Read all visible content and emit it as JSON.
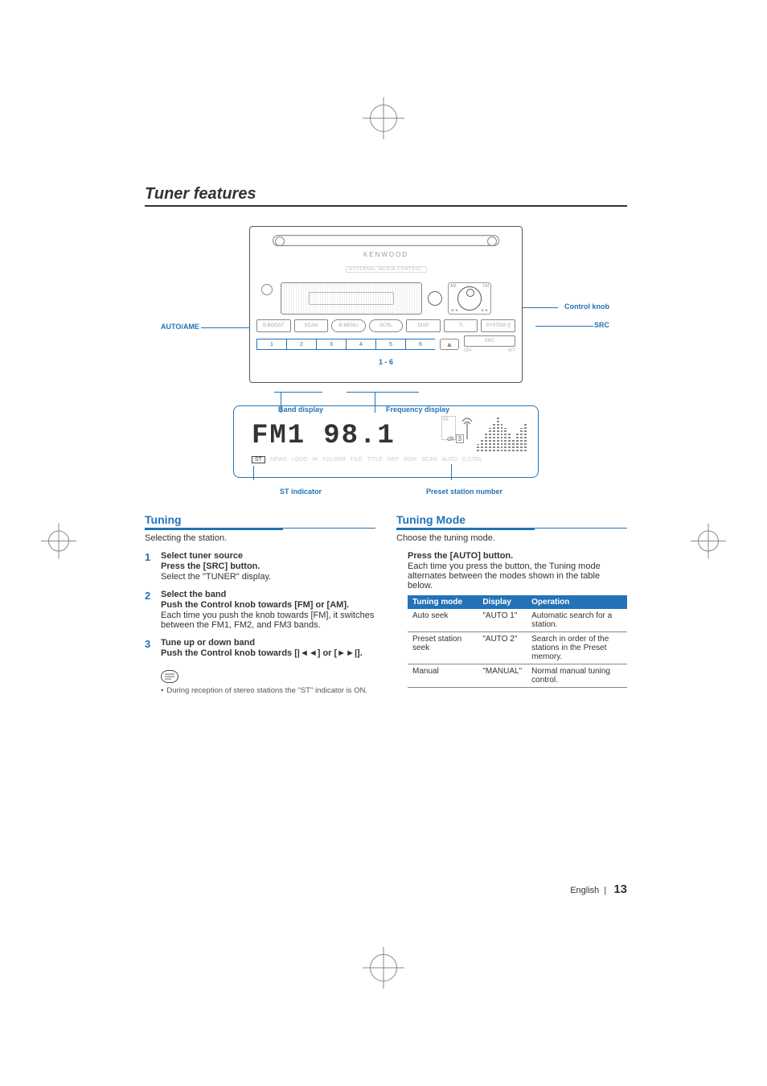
{
  "accent_color": "#2373b8",
  "section_title": "Tuner features",
  "device": {
    "brand": "KENWOOD",
    "sub_brand": "EXTERNAL MEDIA CONTROL",
    "callouts": {
      "auto_ame": "AUTO/AME",
      "control_knob": "Control knob",
      "src": "SRC"
    },
    "btn_row_labels": [
      "B.BOOST",
      "SCAN",
      "B MENU",
      "SCRL",
      "DISP",
      "TI",
      "SYSTEM Q"
    ],
    "btn_row_kind": [
      false,
      false,
      true,
      true,
      false,
      false,
      false
    ],
    "btn_sub_labels": [
      "B.BOOST",
      "SCAN",
      "SCRL",
      "DISP",
      "SYSTEM Q"
    ],
    "right_block": {
      "src": "SRC",
      "off": "OFF",
      "att": "ATT"
    },
    "knob_corners": {
      "tl": "AM",
      "tr": "FM",
      "bl": "◄◄",
      "br": "►►"
    },
    "preset_buttons": [
      "1",
      "2",
      "3",
      "4",
      "5",
      "6"
    ],
    "preset_caption": "1 - 6",
    "eject_glyph": "▲"
  },
  "lcd": {
    "labels": {
      "band_display": "Band display",
      "frequency_display": "Frequency display",
      "st_indicator": "ST indicator",
      "preset_station_number": "Preset station number"
    },
    "band_text": "FM1",
    "freq_text": "98.1",
    "icons_row": [
      "ST",
      "NEWS",
      "LOUD",
      "IN",
      "FOLDER",
      "FILE",
      "TITLE",
      "REP",
      "RDM",
      "SCAN",
      "AUTO",
      "D.CTRL"
    ],
    "eq_bar_heights_pct": [
      20,
      35,
      50,
      65,
      80,
      95,
      80,
      65,
      50,
      35,
      50,
      65,
      80
    ],
    "ch_label": "ch",
    "ch_value": "3"
  },
  "left_col": {
    "heading": "Tuning",
    "intro": "Selecting the station.",
    "steps": [
      {
        "num": "1",
        "title": "Select tuner source",
        "strong": "Press the [SRC] button.",
        "body": "Select the \"TUNER\" display."
      },
      {
        "num": "2",
        "title": "Select the band",
        "strong": "Push the Control knob towards [FM] or [AM].",
        "body": "Each time you push the knob towards [FM], it switches between the FM1, FM2, and FM3 bands."
      },
      {
        "num": "3",
        "title": "Tune up or down band",
        "strong": "Push the Control knob towards [|◄◄] or [►►|].",
        "body": ""
      }
    ],
    "note": "During reception of stereo stations the \"ST\" indicator is ON."
  },
  "right_col": {
    "heading": "Tuning Mode",
    "intro": "Choose the tuning mode.",
    "strong": "Press the [AUTO] button.",
    "desc": "Each time you press the button, the Tuning mode alternates between the modes shown in the table below.",
    "table": {
      "headers": [
        "Tuning mode",
        "Display",
        "Operation"
      ],
      "rows": [
        [
          "Auto seek",
          "\"AUTO 1\"",
          "Automatic search for a station."
        ],
        [
          "Preset station seek",
          "\"AUTO 2\"",
          "Search in order of the stations in the Preset memory."
        ],
        [
          "Manual",
          "\"MANUAL\"",
          "Normal manual tuning control."
        ]
      ]
    }
  },
  "footer": {
    "lang": "English",
    "sep": "|",
    "page": "13"
  }
}
